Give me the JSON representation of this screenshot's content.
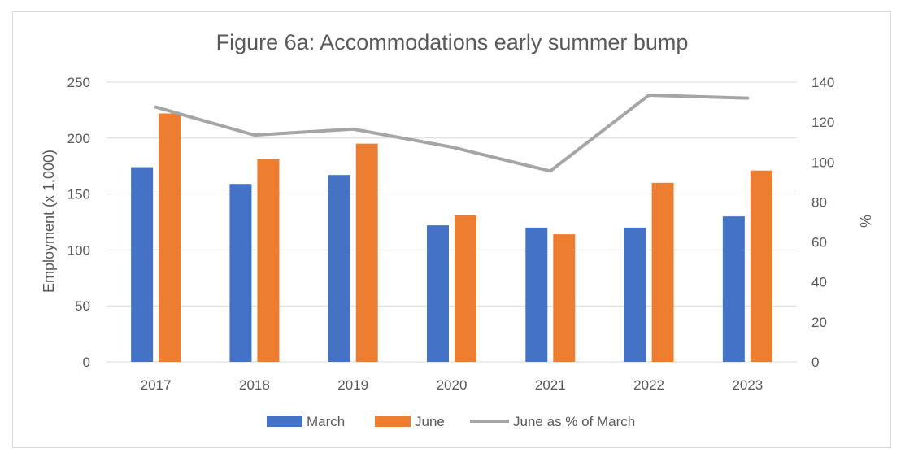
{
  "chart_data": {
    "type": "bar",
    "title": "Figure 6a: Accommodations early summer bump",
    "categories": [
      "2017",
      "2018",
      "2019",
      "2020",
      "2021",
      "2022",
      "2023"
    ],
    "series": [
      {
        "name": "March",
        "type": "bar",
        "axis": "left",
        "color": "#4472c4",
        "values": [
          174,
          159,
          167,
          122,
          120,
          120,
          130
        ]
      },
      {
        "name": "June",
        "type": "bar",
        "axis": "left",
        "color": "#ed7d31",
        "values": [
          222,
          181,
          195,
          131,
          114,
          160,
          171
        ]
      },
      {
        "name": "June as % of March",
        "type": "line",
        "axis": "right",
        "color": "#a5a5a5",
        "values": [
          127.5,
          113.5,
          116.5,
          107.5,
          95.5,
          133.5,
          132
        ]
      }
    ],
    "ylabel": "Employment (x 1,000)",
    "ylim": [
      0,
      250
    ],
    "yticks": [
      "0",
      "50",
      "100",
      "150",
      "200",
      "250"
    ],
    "y2label": "%",
    "y2lim": [
      0,
      140
    ],
    "y2ticks": [
      "0",
      "20",
      "40",
      "60",
      "80",
      "100",
      "120",
      "140"
    ],
    "grid": true,
    "legend": "bottom"
  }
}
